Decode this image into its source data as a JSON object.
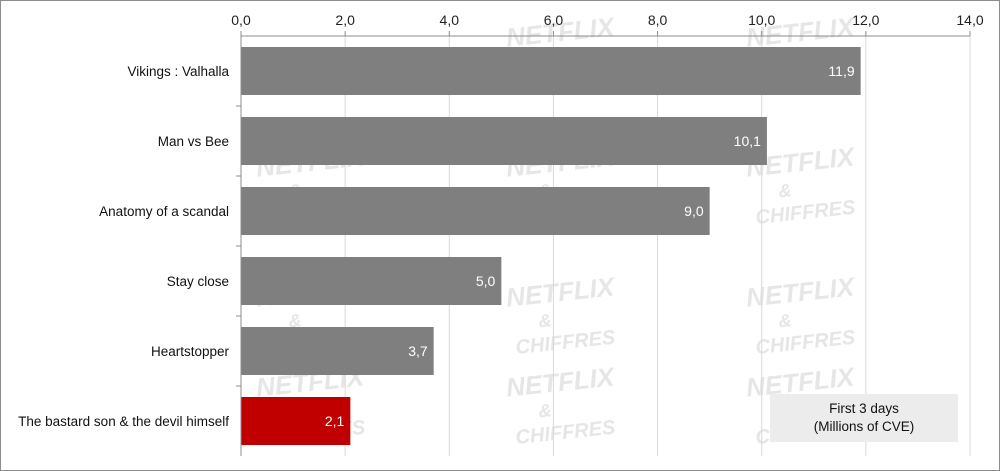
{
  "chart_data": {
    "type": "bar",
    "orientation": "horizontal",
    "categories": [
      "Vikings : Valhalla",
      "Man vs Bee",
      "Anatomy of a scandal",
      "Stay close",
      "Heartstopper",
      "The bastard son & the devil himself"
    ],
    "values": [
      11.9,
      10.1,
      9.0,
      5.0,
      3.7,
      2.1
    ],
    "value_labels": [
      "11,9",
      "10,1",
      "9,0",
      "5,0",
      "3,7",
      "2,1"
    ],
    "bar_colors": [
      "#7f7f7f",
      "#7f7f7f",
      "#7f7f7f",
      "#7f7f7f",
      "#7f7f7f",
      "#c00000"
    ],
    "xlim": [
      0,
      14
    ],
    "x_ticks": [
      0,
      2,
      4,
      6,
      8,
      10,
      12,
      14
    ],
    "x_tick_labels": [
      "0,0",
      "2,0",
      "4,0",
      "6,0",
      "8,0",
      "10,0",
      "12,0",
      "14,0"
    ],
    "x_axis_position": "top",
    "grid": "vertical",
    "legend": {
      "position": "bottom-right",
      "line1": "First 3 days",
      "line2": "(Millions of CVE)"
    },
    "watermark": [
      "NETFLIX",
      "&",
      "CHIFFRES"
    ]
  }
}
